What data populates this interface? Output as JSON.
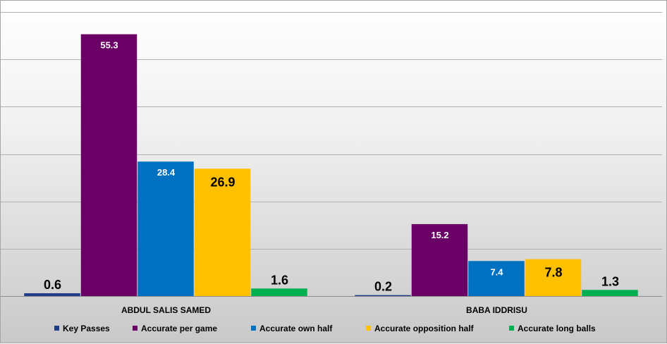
{
  "chart_data": {
    "type": "bar",
    "categories": [
      "ABDUL SALIS SAMED",
      "BABA IDDRISU"
    ],
    "series": [
      {
        "name": "Key Passes",
        "values": [
          0.6,
          0.2
        ],
        "color": "#1f3c88",
        "label_style": "outside-large"
      },
      {
        "name": "Accurate per game",
        "values": [
          55.3,
          15.2
        ],
        "color": "#6a0066",
        "label_style": "inside-white"
      },
      {
        "name": "Accurate own half",
        "values": [
          28.4,
          7.4
        ],
        "color": "#0070c0",
        "label_style": "inside-white"
      },
      {
        "name": "Accurate opposition half",
        "values": [
          26.9,
          7.8
        ],
        "color": "#ffc000",
        "label_style": "inside-large"
      },
      {
        "name": "Accurate long balls",
        "values": [
          1.6,
          1.3
        ],
        "color": "#00b050",
        "label_style": "outside-large"
      }
    ],
    "ylim": [
      0,
      60
    ],
    "y_grid_step": 10,
    "grid": true,
    "legend_position": "bottom",
    "title": "",
    "xlabel": "",
    "ylabel": ""
  }
}
